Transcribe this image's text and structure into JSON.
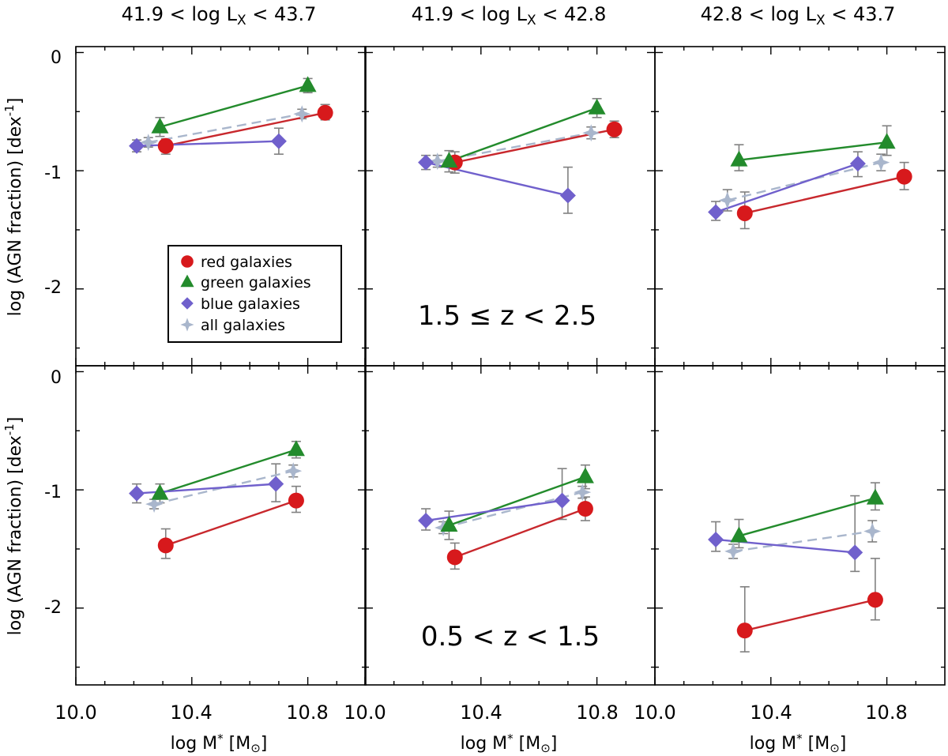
{
  "figure": {
    "column_titles": [
      {
        "pre": "41.9 < log L",
        "sub": "X",
        "post": " < 43.7"
      },
      {
        "pre": "41.9 < log L",
        "sub": "X",
        "post": " < 42.8"
      },
      {
        "pre": "42.8  < log L",
        "sub": "X",
        "post": " < 43.7"
      }
    ],
    "row_labels": [
      "1.5 ≤ z < 2.5",
      "0.5 < z < 1.5"
    ],
    "ylabel": {
      "main": "log (AGN fraction) [dex",
      "sup": "-1",
      "end": "]"
    },
    "xlabel": {
      "pre": "log M",
      "sub": "*",
      "post": " [M",
      "sun": "⊙",
      "end": "]"
    },
    "x_tick_labels": [
      "10.0",
      "10.4",
      "10.8"
    ],
    "y_tick_labels": [
      "0",
      "-1",
      "-2"
    ]
  },
  "legend": {
    "items": [
      {
        "label": "red galaxies",
        "series": "red"
      },
      {
        "label": "green galaxies",
        "series": "green"
      },
      {
        "label": "blue galaxies",
        "series": "blue"
      },
      {
        "label": "all galaxies",
        "series": "all"
      }
    ]
  },
  "chart_data": {
    "type": "scatter",
    "layout": "2 rows x 3 columns of panels with shared axes",
    "xlabel": "log M* [M⊙]",
    "ylabel": "log (AGN fraction) [dex-1]",
    "xlim": [
      10.0,
      11.0
    ],
    "ylim": [
      -2.65,
      0.05
    ],
    "x_ticks": [
      10.0,
      10.4,
      10.8
    ],
    "y_ticks": [
      0,
      -1,
      -2
    ],
    "series_styles": {
      "red": {
        "name": "red galaxies",
        "color": "#d7191c",
        "line_color": "#c8282d",
        "marker": "circle",
        "dashed": false
      },
      "green": {
        "name": "green galaxies",
        "color": "#238b2c",
        "line_color": "#238b2c",
        "marker": "triangle",
        "dashed": false
      },
      "blue": {
        "name": "blue galaxies",
        "color": "#7060cc",
        "line_color": "#7060cc",
        "marker": "diamond",
        "dashed": false
      },
      "all": {
        "name": "all galaxies",
        "color": "#a9b6cc",
        "line_color": "#a9b6cc",
        "marker": "star",
        "dashed": true
      }
    },
    "error_bar_color": "#808080",
    "panels": [
      {
        "row": 0,
        "col": 0,
        "redshift": "1.5 ≤ z < 2.5",
        "lx_range": "41.9 < log LX < 43.7",
        "series": {
          "red": {
            "x": [
              10.31,
              10.86
            ],
            "y": [
              -0.79,
              -0.51
            ],
            "yerr_hi": [
              0.06,
              0.07
            ],
            "yerr_lo": [
              0.07,
              0.06
            ]
          },
          "green": {
            "x": [
              10.29,
              10.8
            ],
            "y": [
              -0.63,
              -0.28
            ],
            "yerr_hi": [
              0.08,
              0.06
            ],
            "yerr_lo": [
              0.08,
              0.06
            ]
          },
          "blue": {
            "x": [
              10.21,
              10.7
            ],
            "y": [
              -0.79,
              -0.75
            ],
            "yerr_hi": [
              0.05,
              0.11
            ],
            "yerr_lo": [
              0.05,
              0.11
            ]
          },
          "all": {
            "x": [
              10.25,
              10.78
            ],
            "y": [
              -0.76,
              -0.52
            ],
            "yerr_hi": [
              0.04,
              0.04
            ],
            "yerr_lo": [
              0.04,
              0.04
            ]
          }
        }
      },
      {
        "row": 0,
        "col": 1,
        "redshift": "1.5 ≤ z < 2.5",
        "lx_range": "41.9 < log LX < 42.8",
        "series": {
          "red": {
            "x": [
              10.31,
              10.86
            ],
            "y": [
              -0.93,
              -0.65
            ],
            "yerr_hi": [
              0.09,
              0.07
            ],
            "yerr_lo": [
              0.09,
              0.07
            ]
          },
          "green": {
            "x": [
              10.29,
              10.8
            ],
            "y": [
              -0.92,
              -0.47
            ],
            "yerr_hi": [
              0.09,
              0.08
            ],
            "yerr_lo": [
              0.09,
              0.08
            ]
          },
          "blue": {
            "x": [
              10.21,
              10.7
            ],
            "y": [
              -0.93,
              -1.21
            ],
            "yerr_hi": [
              0.06,
              0.24
            ],
            "yerr_lo": [
              0.06,
              0.15
            ]
          },
          "all": {
            "x": [
              10.25,
              10.78
            ],
            "y": [
              -0.92,
              -0.68
            ],
            "yerr_hi": [
              0.05,
              0.05
            ],
            "yerr_lo": [
              0.05,
              0.05
            ]
          }
        }
      },
      {
        "row": 0,
        "col": 2,
        "redshift": "1.5 ≤ z < 2.5",
        "lx_range": "42.8 < log LX < 43.7",
        "series": {
          "red": {
            "x": [
              10.31,
              10.86
            ],
            "y": [
              -1.36,
              -1.05
            ],
            "yerr_hi": [
              0.18,
              0.12
            ],
            "yerr_lo": [
              0.13,
              0.11
            ]
          },
          "green": {
            "x": [
              10.29,
              10.8
            ],
            "y": [
              -0.91,
              -0.76
            ],
            "yerr_hi": [
              0.13,
              0.14
            ],
            "yerr_lo": [
              0.09,
              0.11
            ]
          },
          "blue": {
            "x": [
              10.21,
              10.7
            ],
            "y": [
              -1.35,
              -0.94
            ],
            "yerr_hi": [
              0.09,
              0.1
            ],
            "yerr_lo": [
              0.07,
              0.11
            ]
          },
          "all": {
            "x": [
              10.25,
              10.78
            ],
            "y": [
              -1.25,
              -0.93
            ],
            "yerr_hi": [
              0.09,
              0.07
            ],
            "yerr_lo": [
              0.09,
              0.07
            ]
          }
        }
      },
      {
        "row": 1,
        "col": 0,
        "redshift": "0.5 < z < 1.5",
        "lx_range": "41.9 < log LX < 43.7",
        "series": {
          "red": {
            "x": [
              10.31,
              10.76
            ],
            "y": [
              -1.47,
              -1.09
            ],
            "yerr_hi": [
              0.14,
              0.12
            ],
            "yerr_lo": [
              0.11,
              0.1
            ]
          },
          "green": {
            "x": [
              10.29,
              10.76
            ],
            "y": [
              -1.03,
              -0.66
            ],
            "yerr_hi": [
              0.08,
              0.07
            ],
            "yerr_lo": [
              0.08,
              0.07
            ]
          },
          "blue": {
            "x": [
              10.21,
              10.69
            ],
            "y": [
              -1.03,
              -0.95
            ],
            "yerr_hi": [
              0.08,
              0.17
            ],
            "yerr_lo": [
              0.08,
              0.15
            ]
          },
          "all": {
            "x": [
              10.27,
              10.75
            ],
            "y": [
              -1.12,
              -0.84
            ],
            "yerr_hi": [
              0.04,
              0.05
            ],
            "yerr_lo": [
              0.04,
              0.05
            ]
          }
        }
      },
      {
        "row": 1,
        "col": 1,
        "redshift": "0.5 < z < 1.5",
        "lx_range": "41.9 < log LX < 42.8",
        "series": {
          "red": {
            "x": [
              10.31,
              10.76
            ],
            "y": [
              -1.57,
              -1.16
            ],
            "yerr_hi": [
              0.12,
              0.1
            ],
            "yerr_lo": [
              0.1,
              0.1
            ]
          },
          "green": {
            "x": [
              10.29,
              10.76
            ],
            "y": [
              -1.3,
              -0.89
            ],
            "yerr_hi": [
              0.12,
              0.1
            ],
            "yerr_lo": [
              0.12,
              0.1
            ]
          },
          "blue": {
            "x": [
              10.21,
              10.68
            ],
            "y": [
              -1.26,
              -1.09
            ],
            "yerr_hi": [
              0.1,
              0.27
            ],
            "yerr_lo": [
              0.08,
              0.16
            ]
          },
          "all": {
            "x": [
              10.27,
              10.75
            ],
            "y": [
              -1.32,
              -1.02
            ],
            "yerr_hi": [
              0.05,
              0.05
            ],
            "yerr_lo": [
              0.05,
              0.05
            ]
          }
        }
      },
      {
        "row": 1,
        "col": 2,
        "redshift": "0.5 < z < 1.5",
        "lx_range": "42.8 < log LX < 43.7",
        "series": {
          "red": {
            "x": [
              10.31,
              10.76
            ],
            "y": [
              -2.19,
              -1.93
            ],
            "yerr_hi": [
              0.37,
              0.35
            ],
            "yerr_lo": [
              0.18,
              0.17
            ]
          },
          "green": {
            "x": [
              10.29,
              10.76
            ],
            "y": [
              -1.39,
              -1.07
            ],
            "yerr_hi": [
              0.14,
              0.13
            ],
            "yerr_lo": [
              0.1,
              0.1
            ]
          },
          "blue": {
            "x": [
              10.21,
              10.69
            ],
            "y": [
              -1.42,
              -1.53
            ],
            "yerr_hi": [
              0.15,
              0.48
            ],
            "yerr_lo": [
              0.1,
              0.16
            ]
          },
          "all": {
            "x": [
              10.27,
              10.75
            ],
            "y": [
              -1.52,
              -1.35
            ],
            "yerr_hi": [
              0.06,
              0.09
            ],
            "yerr_lo": [
              0.06,
              0.09
            ]
          }
        }
      }
    ]
  }
}
